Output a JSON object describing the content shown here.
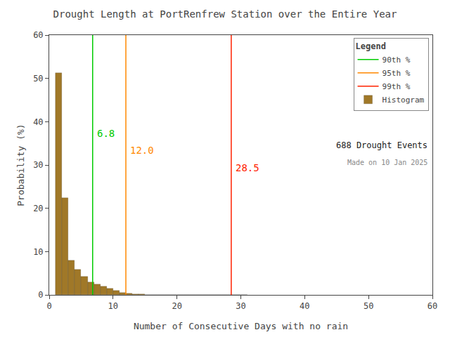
{
  "chart_data": {
    "type": "histogram",
    "title": "Drought Length at PortRenfrew Station over the Entire Year",
    "x_label": "Number of Consecutive Days with no rain",
    "y_label": "Probability (%)",
    "xlim": [
      0,
      60
    ],
    "ylim": [
      0,
      60
    ],
    "xticks": [
      0,
      10,
      20,
      30,
      40,
      50,
      60
    ],
    "yticks": [
      0,
      10,
      20,
      30,
      40,
      50,
      60
    ],
    "grid": false,
    "legend": "upper right",
    "legend_title": "Legend",
    "bins": [
      1,
      2,
      3,
      4,
      5,
      6,
      7,
      8,
      9,
      10,
      11,
      12,
      13,
      14,
      15,
      16,
      17,
      18,
      19,
      20,
      21,
      22,
      23,
      24,
      25,
      26,
      27,
      28,
      29,
      30,
      31
    ],
    "series": [
      {
        "name": "90th %",
        "type": "vline",
        "color": "#00cc00",
        "values": [
          6.8
        ],
        "value_labels": [
          "6.8"
        ]
      },
      {
        "name": "95th %",
        "type": "vline",
        "color": "#ff8800",
        "values": [
          12.0
        ],
        "value_labels": [
          "12.0"
        ]
      },
      {
        "name": "99th %",
        "type": "vline",
        "color": "#ff2200",
        "values": [
          28.5
        ],
        "value_labels": [
          "28.5"
        ]
      },
      {
        "name": "Histogram",
        "type": "bar",
        "color": "#a07828",
        "values": [
          51.2,
          22.4,
          8.0,
          5.8,
          4.2,
          3.0,
          2.4,
          1.9,
          1.4,
          0.9,
          0.5,
          0.3,
          0.15,
          0.1,
          0.07,
          0.05,
          0.03,
          0.02,
          0.01,
          0.0,
          0.01,
          0.0,
          0.0,
          0.0,
          0.0,
          0.0,
          0.0,
          0.0,
          0.01,
          0.0
        ]
      }
    ],
    "annotations": [
      "688 Drought Events",
      "Made on 10 Jan 2025"
    ]
  }
}
